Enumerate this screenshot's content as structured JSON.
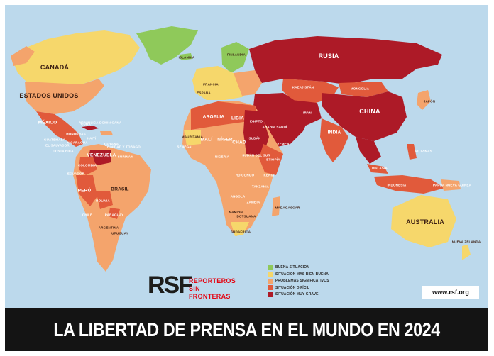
{
  "title": "LA LIBERTAD DE PRENSA EN EL MUNDO EN 2024",
  "website": "www.rsf.org",
  "organization": {
    "logo_mark": "RSF",
    "name_line1": "REPORTEROS",
    "name_line2": "SIN FRONTERAS"
  },
  "legend": [
    {
      "label": "BUENA SITUACIÓN",
      "color": "#8fc95a"
    },
    {
      "label": "SITUACIÓN MÁS BIEN BUENA",
      "color": "#f6d76b"
    },
    {
      "label": "PROBLEMAS SIGNIFICATIVOS",
      "color": "#f4a46c"
    },
    {
      "label": "SITUACIÓN DIFÍCIL",
      "color": "#e15a3b"
    },
    {
      "label": "SITUACIÓN MUY GRAVE",
      "color": "#ad1a27"
    }
  ],
  "country_labels": {
    "canada": "CANADÁ",
    "usa": "ESTADOS UNIDOS",
    "mexico": "MÉXICO",
    "cuba": "CUBA",
    "venezuela": "VENEZUELA",
    "colombia": "COLOMBIA",
    "ecuador": "ECUADOR",
    "peru": "PERÚ",
    "brasil": "BRASIL",
    "bolivia": "BOLIVIA",
    "paraguay": "PARAGUAY",
    "chile": "CHILE",
    "argentina": "ARGENTINA",
    "uruguay": "URUGUAY",
    "guatemala": "GUATEMALA",
    "el_salvador": "EL SALVADOR",
    "costa_rica": "COSTA RICA",
    "nicaragua": "NICARAGUA",
    "honduras": "HONDURAS",
    "haiti": "HAITÍ",
    "rep_dominicana": "REPÚBLICA DOMINICANA",
    "trinidad": "TRINIDAD Y TOBAGO",
    "surinam": "SURINAM",
    "guyana": "GUYANA",
    "islandia": "ISLANDIA",
    "espana": "ESPAÑA",
    "francia": "FRANCIA",
    "finlandia": "FINLANDIA",
    "rusia": "RUSIA",
    "kazajstan": "KAZAJISTÁN",
    "mongolia": "MONGOLIA",
    "china": "CHINA",
    "japon": "JAPÓN",
    "india": "INDIA",
    "filipinas": "FILIPINAS",
    "indonesia": "INDONESIA",
    "papua": "PAPÚA NUEVA GUINEA",
    "australia": "AUSTRALIA",
    "nueva_zelanda": "NUEVA ZELANDA",
    "argelia": "ARGELIA",
    "libia": "LIBIA",
    "egipto": "EGIPTO",
    "mauritania": "MAURITANIA",
    "mali": "MALÍ",
    "niger": "NÍGER",
    "chad": "CHAD",
    "sudan": "SUDÁN",
    "sudan_sur": "SUDÁN DEL SUR",
    "nigeria": "NIGERIA",
    "etiopia": "ETIOPÍA",
    "kenya": "KENIA",
    "angola": "ANGOLA",
    "zambia": "ZAMBIA",
    "namibia": "NAMIBIA",
    "botsuana": "BOTSUANA",
    "sudafrica": "SUDÁFRICA",
    "madagascar": "MADAGASCAR",
    "senegal": "SENEGAL",
    "yemen": "YEMEN",
    "arabia": "ARABIA SAUDÍ",
    "iran": "IRÁN",
    "malasia": "MALASIA",
    "tanzania": "TANZANIA",
    "congo": "RD CONGO"
  }
}
